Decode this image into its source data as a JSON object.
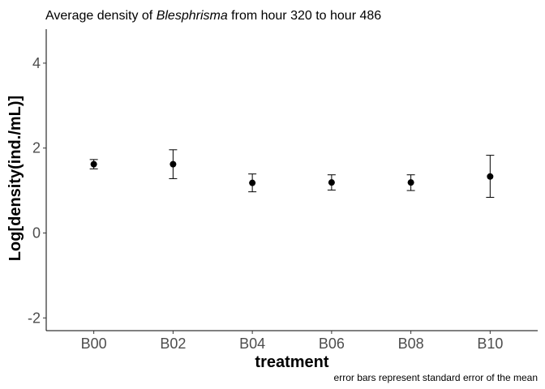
{
  "chart_data": {
    "type": "scatter",
    "title_parts": {
      "prefix": "Average density of ",
      "species": "Blesphrisma",
      "suffix": " from hour 320  to hour  486"
    },
    "xlabel": "treatment",
    "ylabel": "Log[density(ind./mL)]",
    "caption": "error bars represent standard error of the mean",
    "categories": [
      "B00",
      "B02",
      "B04",
      "B06",
      "B08",
      "B10"
    ],
    "ylim": [
      -2.3,
      4.8
    ],
    "yticks": [
      -2,
      0,
      2,
      4
    ],
    "ytick_labels": [
      "-2",
      "0",
      "2",
      "4"
    ],
    "grid": false,
    "legend": "none",
    "point_color": "#000000",
    "series": [
      {
        "values": [
          1.62,
          1.62,
          1.18,
          1.19,
          1.19,
          1.33
        ],
        "error_low": [
          1.51,
          1.28,
          0.97,
          1.01,
          1.0,
          0.84
        ],
        "error_high": [
          1.73,
          1.96,
          1.39,
          1.37,
          1.37,
          1.83
        ]
      }
    ]
  }
}
